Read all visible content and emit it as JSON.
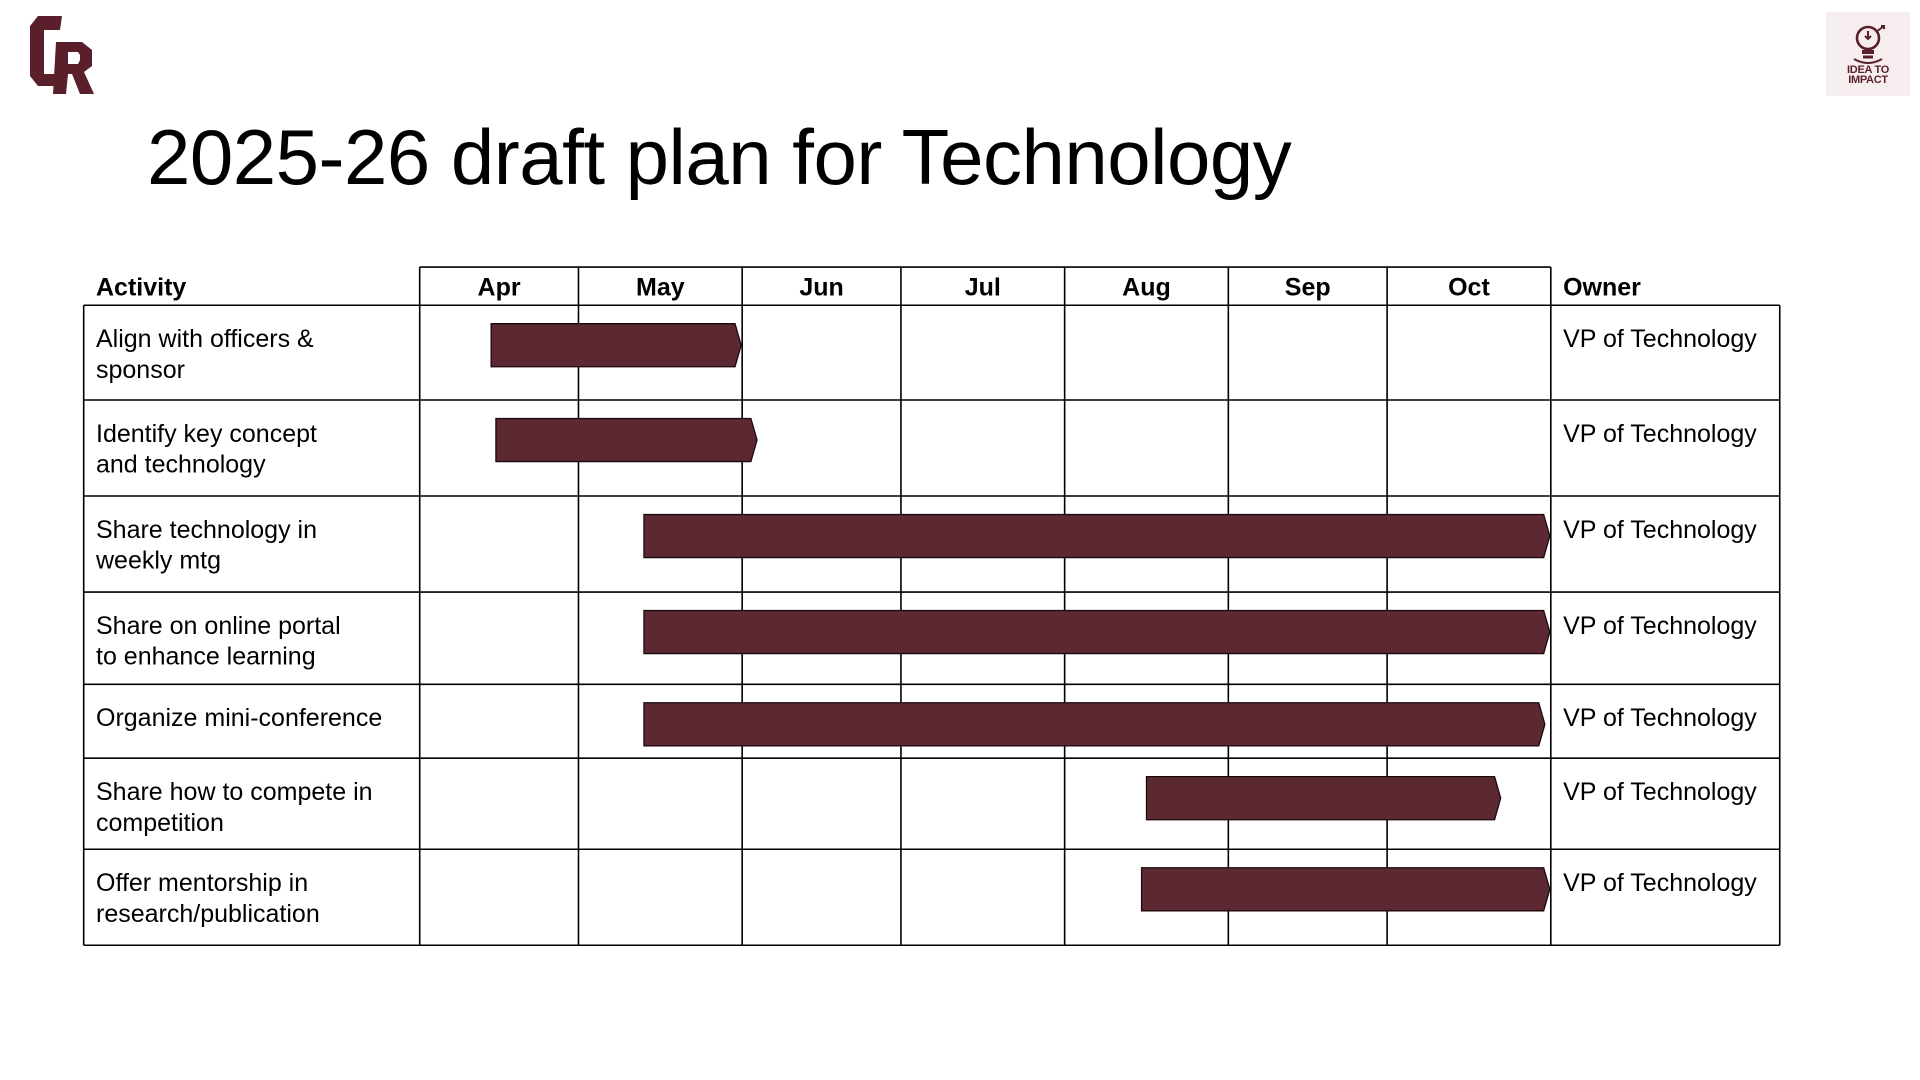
{
  "slide": {
    "title": "2025-26 draft plan for Technology",
    "logo_left": {
      "icon": "cr-monogram-logo",
      "color": "#5a1f2b"
    },
    "logo_right": {
      "icon": "lightbulb-logo",
      "text": [
        "IDEA TO",
        "IMPACT"
      ],
      "color": "#5a1f2b"
    }
  },
  "gantt": {
    "bar_color": "#5c2932",
    "headers": {
      "activity": "Activity",
      "owner": "Owner"
    },
    "months": [
      "Apr",
      "May",
      "Jun",
      "Jul",
      "Aug",
      "Sep",
      "Oct"
    ],
    "rows": [
      {
        "activity": [
          "Align with officers &",
          "sponsor"
        ],
        "owner": "VP of Technology",
        "start": 0.45,
        "end": 2.0
      },
      {
        "activity": [
          "Identify key concept",
          "and technology"
        ],
        "owner": "VP of Technology",
        "start": 0.48,
        "end": 2.1
      },
      {
        "activity": [
          "Share technology in",
          "weekly mtg"
        ],
        "owner": "VP of Technology",
        "start": 1.4,
        "end": 7.0
      },
      {
        "activity": [
          "Share on online portal",
          "to enhance learning"
        ],
        "owner": "VP of Technology",
        "start": 1.4,
        "end": 7.0
      },
      {
        "activity": [
          "Organize mini-conference"
        ],
        "owner": "VP of Technology",
        "start": 1.4,
        "end": 6.97
      },
      {
        "activity": [
          "Share how to compete in",
          "competition"
        ],
        "owner": "VP of Technology",
        "start": 4.5,
        "end": 6.7
      },
      {
        "activity": [
          "Offer mentorship in",
          "research/publication"
        ],
        "owner": "VP of Technology",
        "start": 4.47,
        "end": 7.0
      }
    ]
  }
}
